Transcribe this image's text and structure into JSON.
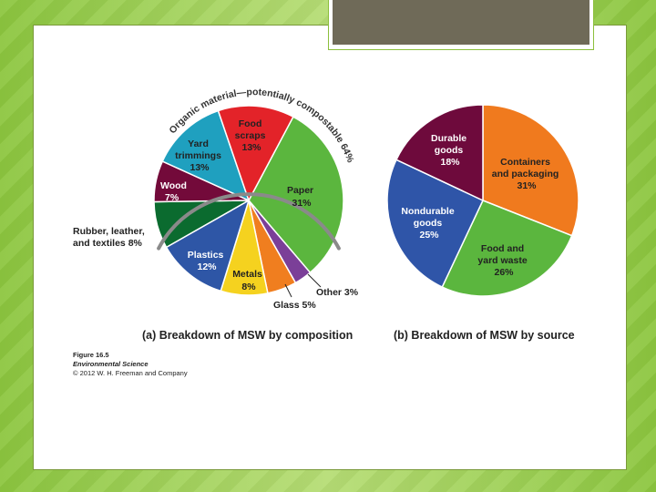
{
  "chart_data": [
    {
      "type": "pie",
      "caption": "(a) Breakdown of MSW by composition",
      "arc_annotation": "Organic material—potentially compostable 64%",
      "slices": [
        {
          "label": "Paper",
          "value": 31,
          "color": "#5bb63e"
        },
        {
          "label": "Other",
          "value": 3,
          "color": "#7b3f98"
        },
        {
          "label": "Glass",
          "value": 5,
          "color": "#f07e1f"
        },
        {
          "label": "Metals",
          "value": 8,
          "color": "#f5d21f"
        },
        {
          "label": "Plastics",
          "value": 12,
          "color": "#2e56a6"
        },
        {
          "label": "Rubber, leather, and textiles",
          "value": 8,
          "color": "#0b6b2f"
        },
        {
          "label": "Wood",
          "value": 7,
          "color": "#730a3a"
        },
        {
          "label": "Yard trimmings",
          "value": 13,
          "color": "#1fa0bf"
        },
        {
          "label": "Food scraps",
          "value": 13,
          "color": "#e32329"
        }
      ],
      "labels": {
        "food": [
          "Food",
          "scraps",
          "13%"
        ],
        "yard": [
          "Yard",
          "trimmings",
          "13%"
        ],
        "wood": [
          "Wood",
          "7%"
        ],
        "paper": [
          "Paper",
          "31%"
        ],
        "rubber": [
          "Rubber, leather,",
          "and textiles 8%"
        ],
        "plastics": [
          "Plastics",
          "12%"
        ],
        "metals": [
          "Metals",
          "8%"
        ],
        "glass": "Glass 5%",
        "other": "Other 3%"
      }
    },
    {
      "type": "pie",
      "caption": "(b) Breakdown of MSW by source",
      "slices": [
        {
          "label": "Containers and packaging",
          "value": 31,
          "color": "#f07a1e"
        },
        {
          "label": "Food and yard waste",
          "value": 26,
          "color": "#5bb63e"
        },
        {
          "label": "Nondurable goods",
          "value": 25,
          "color": "#2f55a8"
        },
        {
          "label": "Durable goods",
          "value": 18,
          "color": "#6e0a3c"
        }
      ],
      "labels": {
        "containers": [
          "Containers",
          "and packaging",
          "31%"
        ],
        "foodyard": [
          "Food and",
          "yard waste",
          "26%"
        ],
        "nondurable": [
          "Nondurable",
          "goods",
          "25%"
        ],
        "durable": [
          "Durable",
          "goods",
          "18%"
        ]
      }
    }
  ],
  "figure": {
    "number": "Figure 16.5",
    "book": "Environmental Science",
    "copyright": "© 2012 W. H. Freeman and Company"
  }
}
